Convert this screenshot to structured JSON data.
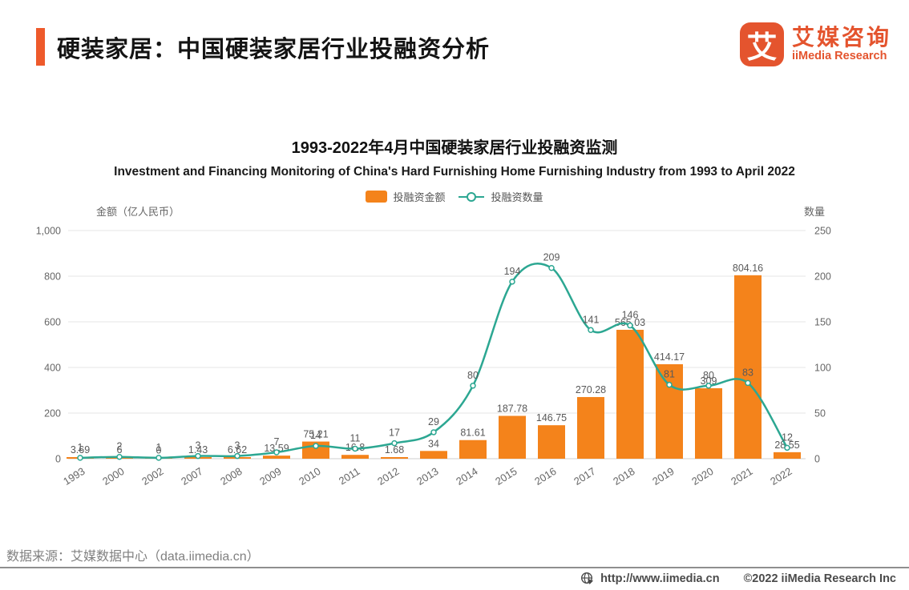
{
  "header": {
    "title": "硬装家居：中国硬装家居行业投融资分析"
  },
  "logo": {
    "symbol": "艾",
    "name_cn": "艾媒咨询",
    "name_en": "iiMedia Research",
    "color": "#e4542e"
  },
  "chart_data": {
    "type": "bar",
    "title": "1993-2022年4月中国硬装家居行业投融资监测",
    "subtitle": "Investment and Financing Monitoring of China's Hard Furnishing Home Furnishing Industry from 1993 to April 2022",
    "grid": true,
    "legend_position": "top-center",
    "categories": [
      "1993",
      "2000",
      "2002",
      "2007",
      "2008",
      "2009",
      "2010",
      "2011",
      "2012",
      "2013",
      "2014",
      "2015",
      "2016",
      "2017",
      "2018",
      "2019",
      "2020",
      "2021",
      "2022"
    ],
    "series": [
      {
        "name": "投融资金额",
        "type": "bar",
        "axis": "left",
        "color": "#f4831b",
        "values": [
          3.69,
          6,
          0,
          1.43,
          6.62,
          13.59,
          75.21,
          16.8,
          1.68,
          34,
          81.61,
          187.78,
          146.75,
          270.28,
          565.03,
          414.17,
          309,
          804.16,
          28.55
        ],
        "labels": [
          "3.69",
          "6",
          "0",
          "1.43",
          "6.62",
          "13.59",
          "75.21",
          "16.8",
          "1.68",
          "34",
          "81.61",
          "187.78",
          "146.75",
          "270.28",
          "565.03",
          "414.17",
          "309",
          "804.16",
          "28.55"
        ]
      },
      {
        "name": "投融资数量",
        "type": "line",
        "axis": "right",
        "color": "#2ca792",
        "values": [
          1,
          2,
          1,
          3,
          3,
          7,
          14,
          11,
          17,
          29,
          80,
          194,
          209,
          141,
          146,
          81,
          80,
          83,
          12
        ]
      }
    ],
    "left_axis": {
      "title": "金额（亿人民币）",
      "min": 0,
      "max": 1000,
      "ticks": [
        "1,000",
        "800",
        "600",
        "400",
        "200",
        "0"
      ]
    },
    "right_axis": {
      "title": "数量",
      "min": 0,
      "max": 250,
      "ticks": [
        "250",
        "200",
        "150",
        "100",
        "50",
        "0"
      ]
    }
  },
  "source": {
    "text": "数据来源：艾媒数据中心（data.iimedia.cn）"
  },
  "footer": {
    "url": "http://www.iimedia.cn",
    "copyright": "©2022  iiMedia Research Inc"
  }
}
